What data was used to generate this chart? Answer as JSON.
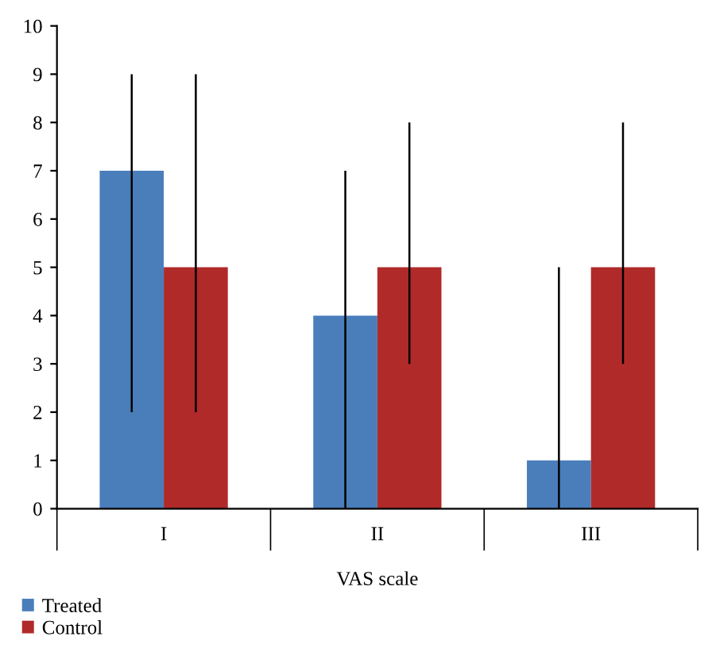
{
  "chart_data": {
    "type": "bar",
    "xlabel": "VAS scale",
    "categories": [
      "I",
      "II",
      "III"
    ],
    "series": [
      {
        "name": "Treated",
        "color": "#4a7ebb",
        "values": [
          7,
          4,
          1
        ],
        "errors": [
          [
            2,
            9
          ],
          [
            0,
            7
          ],
          [
            0,
            5
          ]
        ]
      },
      {
        "name": "Control",
        "color": "#b02a2a",
        "values": [
          5,
          5,
          5
        ],
        "errors": [
          [
            2,
            9
          ],
          [
            3,
            8
          ],
          [
            3,
            8
          ]
        ]
      }
    ],
    "ylim": [
      0,
      10
    ],
    "yticks": [
      0,
      1,
      2,
      3,
      4,
      5,
      6,
      7,
      8,
      9,
      10
    ],
    "grid": false,
    "legend": "bottom left"
  }
}
